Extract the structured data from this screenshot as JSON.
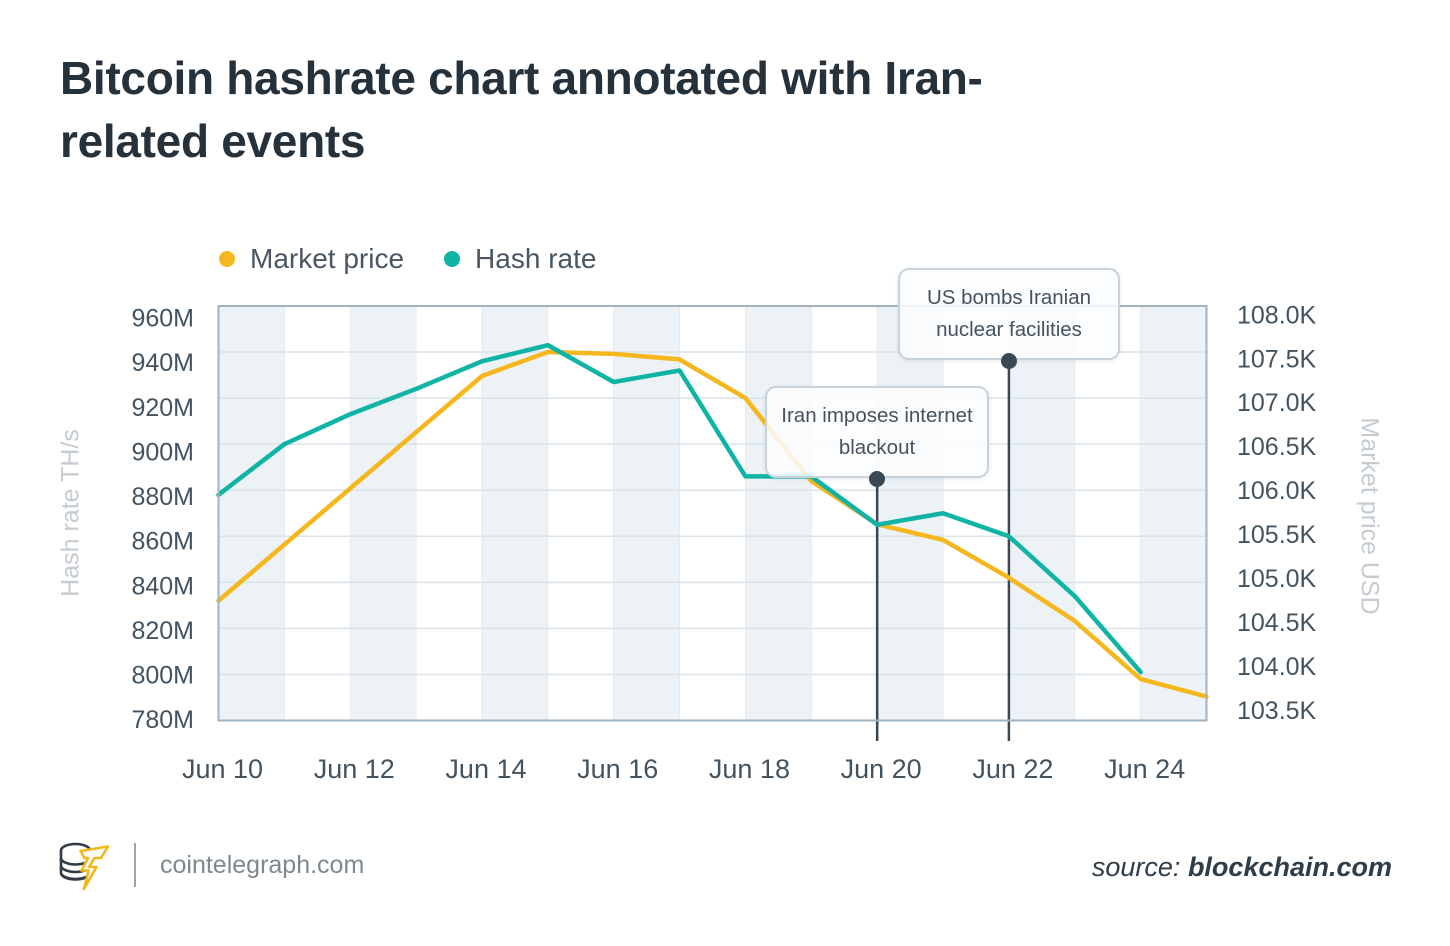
{
  "header": {
    "title": "Bitcoin hashrate chart annotated with Iran-related events"
  },
  "legend": [
    {
      "label": "Market price",
      "color": "#f5b71d"
    },
    {
      "label": "Hash rate",
      "color": "#0fb4a5"
    }
  ],
  "colors": {
    "market_price": "#f5b71d",
    "hash_rate": "#0fb4a5",
    "annotation_connector": "#3a4854",
    "band": "#edf2f7",
    "h_grid": "#dae3ea",
    "v_grid": "#e4eaf0",
    "plot_border": "#a2b3bf"
  },
  "chart_data": {
    "type": "line",
    "x": [
      "Jun 10",
      "Jun 11",
      "Jun 12",
      "Jun 13",
      "Jun 14",
      "Jun 15",
      "Jun 16",
      "Jun 17",
      "Jun 18",
      "Jun 19",
      "Jun 20",
      "Jun 21",
      "Jun 22",
      "Jun 23",
      "Jun 24",
      "Jun 25"
    ],
    "x_tick_labels": [
      "Jun 10",
      "Jun 12",
      "Jun 14",
      "Jun 16",
      "Jun 18",
      "Jun 20",
      "Jun 22",
      "Jun 24"
    ],
    "left_axis": {
      "title": "Hash rate TH/s",
      "tick_labels": [
        "960M",
        "940M",
        "920M",
        "900M",
        "880M",
        "860M",
        "840M",
        "820M",
        "800M",
        "780M"
      ],
      "min": 780,
      "max": 960
    },
    "right_axis": {
      "title": "Market price USD",
      "tick_labels": [
        "108.0K",
        "107.5K",
        "107.0K",
        "106.5K",
        "106.0K",
        "105.5K",
        "105.0K",
        "104.5K",
        "104.0K",
        "103.5K"
      ],
      "min": 103.5,
      "max": 108.0
    },
    "series": [
      {
        "name": "Market price",
        "axis": "right",
        "color": "#f5b71d",
        "values": [
          104.8,
          105.41,
          106.02,
          106.63,
          107.24,
          107.5,
          107.48,
          107.42,
          107.0,
          106.1,
          105.63,
          105.46,
          105.05,
          104.58,
          103.95,
          103.76
        ]
      },
      {
        "name": "Hash rate",
        "axis": "left",
        "color": "#0fb4a5",
        "values": [
          878,
          900,
          913,
          924,
          936,
          943,
          927,
          932,
          886,
          886,
          865,
          870,
          860,
          834,
          801,
          null
        ]
      }
    ],
    "annotations": [
      {
        "text": "Iran imposes internet blackout",
        "date": "Jun 20"
      },
      {
        "text": "US bombs Iranian nuclear facilities",
        "date": "Jun 22"
      }
    ],
    "grid": true,
    "legend_position": "top-left"
  },
  "footer": {
    "brand": "cointelegraph.com",
    "source_prefix": "source:",
    "source": "blockchain.com"
  }
}
